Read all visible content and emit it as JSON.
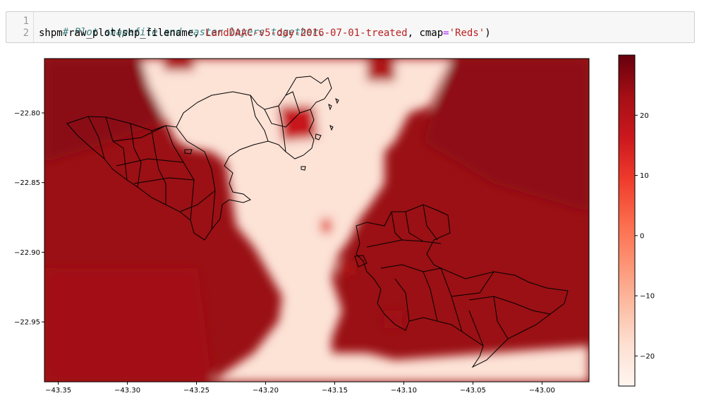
{
  "code_cell": {
    "lines": [
      {
        "number": "1",
        "comment": "# Plot shapefile and raster layers together."
      },
      {
        "number": "2",
        "prefix": "shpm.raw_plot(shp_filename, ",
        "variable": "LandDAAC-v5-day-2016-07-01-treated",
        "middle": ", cmap",
        "operator": "=",
        "string": "'Reds'",
        "suffix": ")"
      }
    ]
  },
  "chart_data": {
    "type": "heatmap",
    "title": "",
    "xlabel": "",
    "ylabel": "",
    "xlim": [
      -43.36,
      -42.966
    ],
    "ylim": [
      -22.993,
      -22.761
    ],
    "x_ticks": [
      -43.35,
      -43.3,
      -43.25,
      -43.2,
      -43.15,
      -43.1,
      -43.05,
      -43.0
    ],
    "x_tick_labels": [
      "−43.35",
      "−43.30",
      "−43.25",
      "−43.20",
      "−43.15",
      "−43.10",
      "−43.05",
      "−43.00"
    ],
    "y_ticks": [
      -22.8,
      -22.85,
      -22.9,
      -22.95
    ],
    "y_tick_labels": [
      "−22.80",
      "−22.85",
      "−22.90",
      "−22.95"
    ],
    "colormap": "Reds",
    "colorbar": {
      "range": [
        -25,
        30
      ],
      "ticks": [
        20,
        10,
        0,
        -10,
        -20
      ],
      "tick_labels": [
        "20",
        "10",
        "0",
        "−10",
        "−20"
      ],
      "colors": [
        "#fff5f0",
        "#fee0d2",
        "#fcbba1",
        "#fc9272",
        "#fb6a4a",
        "#ef3b2c",
        "#cb181d",
        "#a50f15",
        "#67000d"
      ]
    },
    "grid": false,
    "overlay": "shapefile polygon outlines"
  }
}
